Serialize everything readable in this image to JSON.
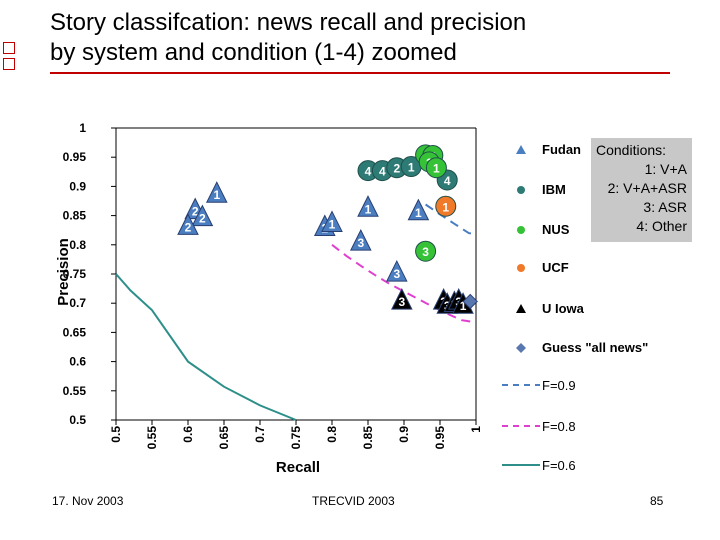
{
  "title_lines": [
    "Story classifcation: news recall and precision",
    "by system and condition (1-4) zoomed"
  ],
  "conditions": [
    "Conditions:",
    "1: V+A",
    "2: V+A+ASR",
    "3: ASR",
    "4: Other"
  ],
  "footer": {
    "date": "17. Nov 2003",
    "center": "TRECVID 2003",
    "page": "85"
  },
  "colors": {
    "accent_rule": "#c00000",
    "Fudan": "#4a7ec0",
    "IBM": "#2e7a74",
    "NUS": "#36c236",
    "UCF": "#f07a2a",
    "U Iowa": "#000000",
    "Guess": "#5a78b0",
    "F09": "#4a7ec0",
    "F08": "#e040d0",
    "F06": "#2e8f8a"
  },
  "chart_data": {
    "type": "scatter",
    "title": "",
    "xlabel": "Recall",
    "ylabel": "Precision",
    "xlim": [
      0.5,
      1
    ],
    "ylim": [
      0.5,
      1
    ],
    "x_ticks": [
      "0.5",
      "0.55",
      "0.6",
      "0.65",
      "0.7",
      "0.75",
      "0.8",
      "0.85",
      "0.9",
      "0.95",
      "1"
    ],
    "y_ticks": [
      "1",
      "0.95",
      "0.9",
      "0.85",
      "0.8",
      "0.75",
      "0.7",
      "0.65",
      "0.6",
      "0.55",
      "0.5"
    ],
    "grid": false,
    "legend_position": "right",
    "series": [
      {
        "name": "Fudan",
        "marker": "triangle",
        "color": "#4a7ec0",
        "points": [
          {
            "x": 0.61,
            "y": 0.862,
            "label": "2"
          },
          {
            "x": 0.62,
            "y": 0.85,
            "label": "2"
          },
          {
            "x": 0.6,
            "y": 0.835,
            "label": "2"
          },
          {
            "x": 0.64,
            "y": 0.89,
            "label": "1"
          },
          {
            "x": 0.79,
            "y": 0.833,
            "label": "2"
          },
          {
            "x": 0.8,
            "y": 0.84,
            "label": "1"
          },
          {
            "x": 0.85,
            "y": 0.866,
            "label": "1"
          },
          {
            "x": 0.92,
            "y": 0.86,
            "label": "1"
          },
          {
            "x": 0.84,
            "y": 0.808,
            "label": "3"
          },
          {
            "x": 0.89,
            "y": 0.755,
            "label": "3"
          }
        ]
      },
      {
        "name": "IBM",
        "marker": "circle",
        "color": "#2e7a74",
        "points": [
          {
            "x": 0.85,
            "y": 0.927,
            "label": "4"
          },
          {
            "x": 0.87,
            "y": 0.927,
            "label": "4"
          },
          {
            "x": 0.89,
            "y": 0.932,
            "label": "2"
          },
          {
            "x": 0.91,
            "y": 0.934,
            "label": "1"
          },
          {
            "x": 0.96,
            "y": 0.911,
            "label": "4"
          }
        ]
      },
      {
        "name": "NUS",
        "marker": "circle",
        "color": "#36c236",
        "points": [
          {
            "x": 0.93,
            "y": 0.954,
            "label": "2"
          },
          {
            "x": 0.94,
            "y": 0.953,
            "label": "2"
          },
          {
            "x": 0.935,
            "y": 0.942,
            "label": "1"
          },
          {
            "x": 0.945,
            "y": 0.932,
            "label": "1"
          },
          {
            "x": 0.93,
            "y": 0.789,
            "label": "3"
          }
        ]
      },
      {
        "name": "UCF",
        "marker": "circle",
        "color": "#f07a2a",
        "points": [
          {
            "x": 0.958,
            "y": 0.866,
            "label": "1"
          }
        ]
      },
      {
        "name": "U Iowa",
        "marker": "triangle",
        "color": "#000000",
        "points": [
          {
            "x": 0.897,
            "y": 0.707,
            "label": "3"
          },
          {
            "x": 0.955,
            "y": 0.707,
            "label": "2"
          },
          {
            "x": 0.96,
            "y": 0.7,
            "label": "3"
          },
          {
            "x": 0.97,
            "y": 0.703,
            "label": "3"
          },
          {
            "x": 0.976,
            "y": 0.707,
            "label": "3"
          },
          {
            "x": 0.982,
            "y": 0.7,
            "label": "1"
          }
        ]
      },
      {
        "name": "Guess \"all news\"",
        "marker": "diamond",
        "color": "#5a78b0",
        "points": [
          {
            "x": 0.992,
            "y": 0.703
          }
        ]
      }
    ],
    "curves": [
      {
        "name": "F=0.9",
        "style": "dashed",
        "color": "#4a7ec0",
        "points": [
          [
            0.93,
            0.869
          ],
          [
            0.95,
            0.852
          ],
          [
            0.97,
            0.836
          ],
          [
            0.99,
            0.82
          ],
          [
            1.0,
            0.818
          ]
        ]
      },
      {
        "name": "F=0.8",
        "style": "dashed",
        "color": "#e040d0",
        "points": [
          [
            0.8,
            0.8
          ],
          [
            0.82,
            0.781
          ],
          [
            0.84,
            0.764
          ],
          [
            0.86,
            0.748
          ],
          [
            0.88,
            0.733
          ],
          [
            0.9,
            0.72
          ],
          [
            0.92,
            0.707
          ],
          [
            0.94,
            0.694
          ],
          [
            0.96,
            0.682
          ],
          [
            0.98,
            0.671
          ],
          [
            1.0,
            0.667
          ]
        ]
      },
      {
        "name": "F=0.6",
        "style": "solid",
        "color": "#2e8f8a",
        "points": [
          [
            0.5,
            0.75
          ],
          [
            0.52,
            0.722
          ],
          [
            0.55,
            0.688
          ],
          [
            0.6,
            0.6
          ],
          [
            0.65,
            0.557
          ],
          [
            0.7,
            0.525
          ],
          [
            0.75,
            0.5
          ]
        ]
      }
    ]
  }
}
